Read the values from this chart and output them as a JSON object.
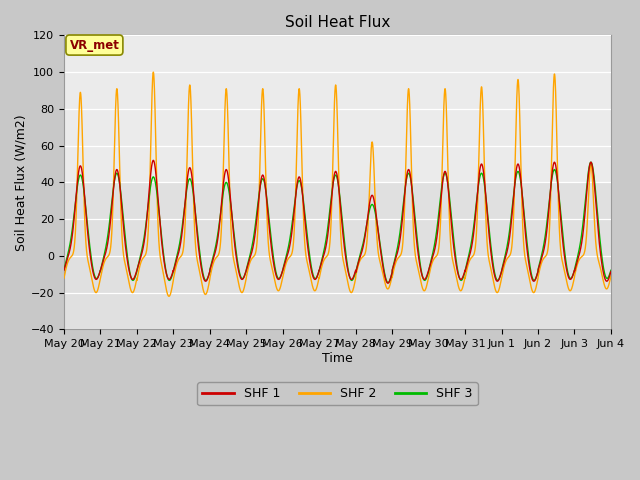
{
  "title": "Soil Heat Flux",
  "xlabel": "Time",
  "ylabel": "Soil Heat Flux (W/m2)",
  "ylim": [
    -40,
    120
  ],
  "yticks": [
    -40,
    -20,
    0,
    20,
    40,
    60,
    80,
    100,
    120
  ],
  "x_tick_labels": [
    "May 20",
    "May 21",
    "May 22",
    "May 23",
    "May 24",
    "May 25",
    "May 26",
    "May 27",
    "May 28",
    "May 29",
    "May 30",
    "May 31",
    "Jun 1",
    "Jun 2",
    "Jun 3",
    "Jun 4"
  ],
  "shf1_color": "#cc0000",
  "shf2_color": "#ffa500",
  "shf3_color": "#00bb00",
  "fig_bg_color": "#c8c8c8",
  "plot_bg_color": "#e0e0e0",
  "plot_bg_upper_color": "#ebebeb",
  "legend_label1": "SHF 1",
  "legend_label2": "SHF 2",
  "legend_label3": "SHF 3",
  "annotation_text": "VR_met",
  "annotation_color": "#8b0000",
  "annotation_bg": "#ffff99",
  "num_cycles": 15,
  "shf2_peaks": [
    89,
    91,
    100,
    93,
    91,
    91,
    91,
    93,
    62,
    91,
    91,
    92,
    96,
    99,
    50
  ],
  "shf1_peaks": [
    49,
    47,
    52,
    48,
    47,
    44,
    43,
    46,
    33,
    47,
    46,
    50,
    50,
    51,
    51
  ],
  "shf3_peaks": [
    44,
    45,
    43,
    42,
    40,
    42,
    41,
    44,
    28,
    45,
    45,
    45,
    46,
    47,
    51
  ],
  "shf1_troughs": [
    -13,
    -13,
    -13,
    -14,
    -13,
    -13,
    -13,
    -13,
    -15,
    -13,
    -13,
    -14,
    -14,
    -13,
    -14
  ],
  "shf2_troughs": [
    -20,
    -20,
    -22,
    -21,
    -20,
    -19,
    -19,
    -20,
    -18,
    -19,
    -19,
    -20,
    -20,
    -19,
    -18
  ],
  "shf3_troughs": [
    -13,
    -14,
    -14,
    -14,
    -13,
    -13,
    -13,
    -14,
    -15,
    -14,
    -14,
    -14,
    -14,
    -13,
    -13
  ]
}
